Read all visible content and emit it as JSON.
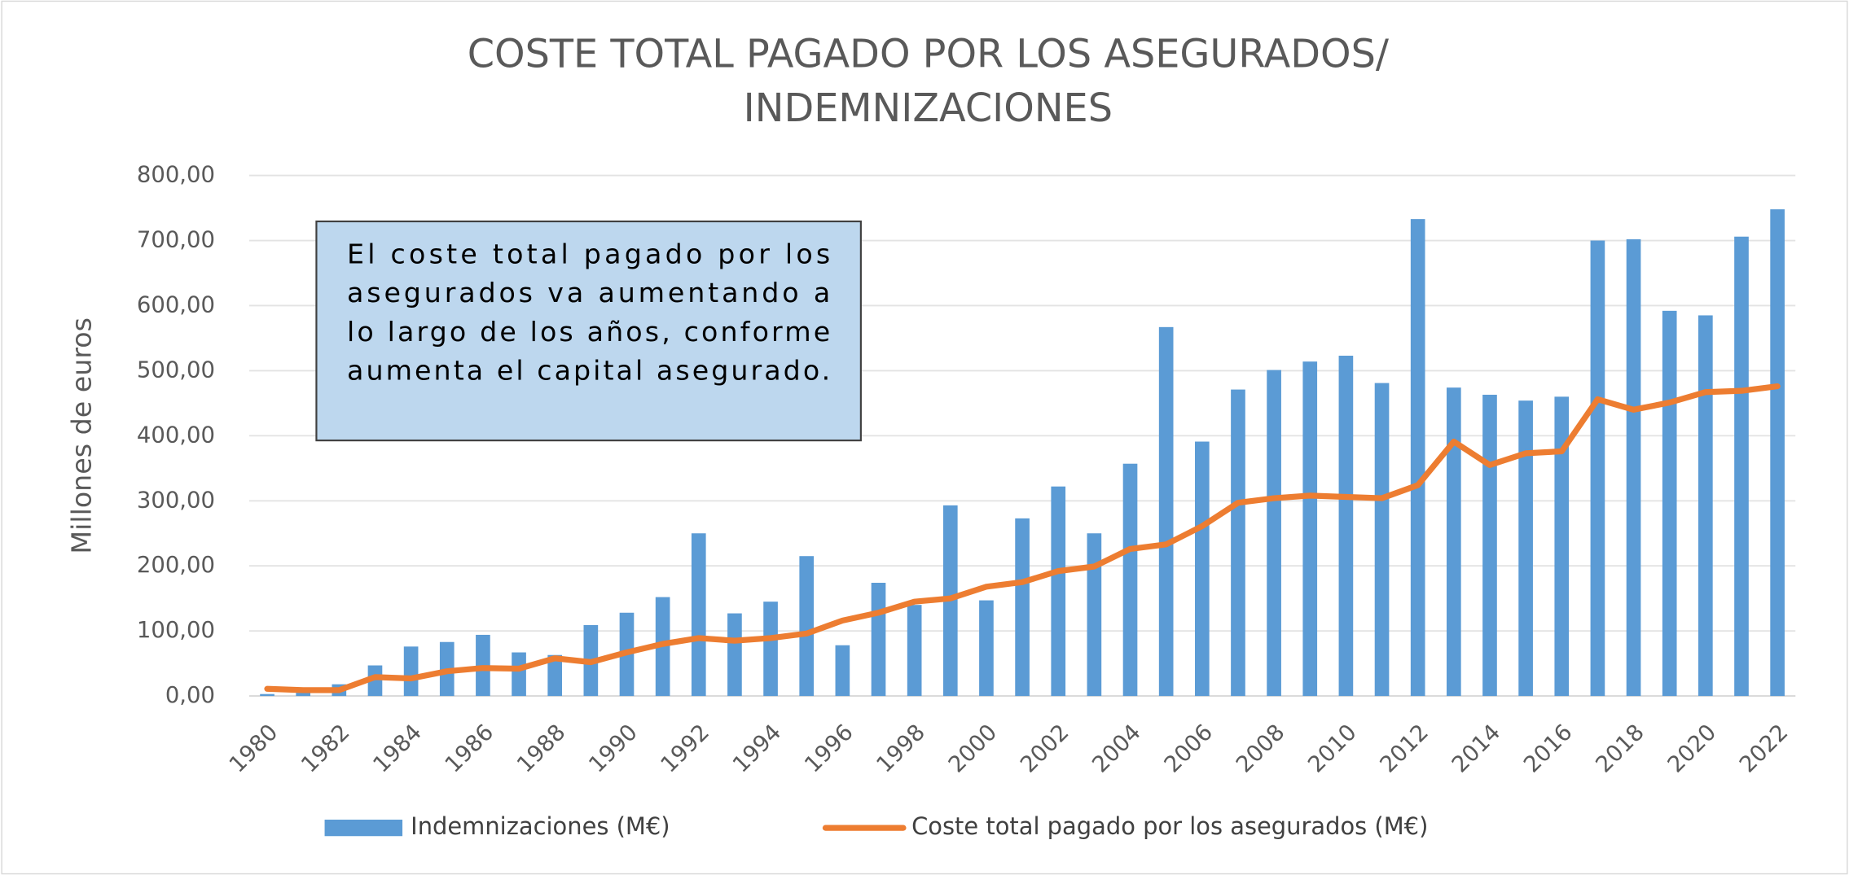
{
  "chart_data": {
    "type": "bar_line",
    "title": [
      "COSTE TOTAL PAGADO POR LOS ASEGURADOS/",
      "INDEMNIZACIONES"
    ],
    "y_label": "Millones de euros",
    "annotation": [
      "El coste total pagado por los",
      "asegurados va aumentando a",
      "lo largo de los años, conforme",
      "aumenta el capital asegurado."
    ],
    "categories": [
      "1980",
      null,
      "1982",
      null,
      "1984",
      null,
      "1986",
      null,
      "1988",
      null,
      "1990",
      null,
      "1992",
      null,
      "1994",
      null,
      "1996",
      null,
      "1998",
      null,
      "2000",
      null,
      "2002",
      null,
      "2004",
      null,
      "2006",
      null,
      "2008",
      null,
      "2010",
      null,
      "2012",
      null,
      "2014",
      null,
      "2016",
      null,
      "2018",
      null,
      "2020",
      null,
      "2022"
    ],
    "series": [
      {
        "name": "Indemnizaciones  (M€)",
        "type": "bar",
        "color": "#5b9bd5",
        "values": [
          3,
          5,
          18,
          47,
          76,
          83,
          94,
          67,
          63,
          109,
          128,
          152,
          250,
          127,
          145,
          215,
          78,
          174,
          140,
          293,
          147,
          273,
          322,
          250,
          357,
          567,
          391,
          471,
          501,
          514,
          523,
          481,
          733,
          474,
          463,
          454,
          460,
          700,
          702,
          592,
          585,
          706,
          748
        ]
      },
      {
        "name": "Coste total pagado por los asegurados (M€)",
        "type": "line",
        "color": "#ed7d31",
        "values": [
          11,
          9,
          9,
          29,
          27,
          38,
          43,
          42,
          58,
          52,
          67,
          80,
          89,
          85,
          89,
          96,
          116,
          128,
          145,
          150,
          168,
          175,
          192,
          199,
          226,
          233,
          261,
          297,
          304,
          308,
          306,
          304,
          324,
          391,
          355,
          373,
          376,
          456,
          440,
          451,
          467,
          469,
          476
        ]
      }
    ],
    "ylim": [
      0,
      800
    ],
    "yticks": [
      {
        "value": 0,
        "label": "0,00"
      },
      {
        "value": 100,
        "label": "100,00"
      },
      {
        "value": 200,
        "label": "200,00"
      },
      {
        "value": 300,
        "label": "300,00"
      },
      {
        "value": 400,
        "label": "400,00"
      },
      {
        "value": 500,
        "label": "500,00"
      },
      {
        "value": 600,
        "label": "600,00"
      },
      {
        "value": 700,
        "label": "700,00"
      },
      {
        "value": 800,
        "label": "800,00"
      }
    ],
    "grid": true
  }
}
